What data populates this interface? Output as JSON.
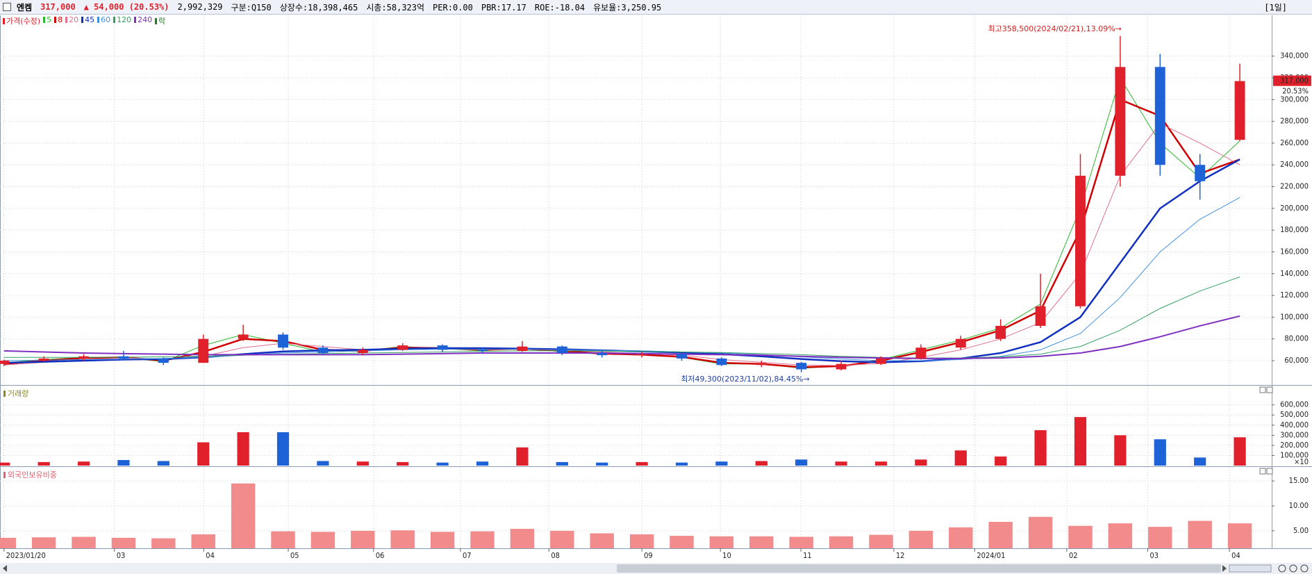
{
  "header": {
    "name": "엔켐",
    "price": "317,000",
    "change": "▲ 54,000 (20.53%)",
    "volume": "2,992,329",
    "fields": [
      "구분:Q150",
      "상장수:18,398,465",
      "시총:58,323억",
      "PER:0.00",
      "PBR:17.17",
      "ROE:-18.04",
      "유보율:3,250.95"
    ],
    "period": "[1일]"
  },
  "chart_data": [
    {
      "type": "candlestick",
      "legend_title": "가격(수정)",
      "up_color": "#e0202a",
      "down_color": "#1d62d6",
      "xlim": [
        -0.1,
        31.8
      ],
      "ylim": [
        37640,
        377500
      ],
      "yticks": [
        {
          "value": 60000,
          "label": "60,000"
        },
        {
          "value": 80000,
          "label": "80,000"
        },
        {
          "value": 100000,
          "label": "100,000"
        },
        {
          "value": 120000,
          "label": "120,000"
        },
        {
          "value": 140000,
          "label": "140,000"
        },
        {
          "value": 160000,
          "label": "160,000"
        },
        {
          "value": 180000,
          "label": "180,000"
        },
        {
          "value": 200000,
          "label": "200,000"
        },
        {
          "value": 220000,
          "label": "220,000"
        },
        {
          "value": 240000,
          "label": "240,000"
        },
        {
          "value": 260000,
          "label": "260,000"
        },
        {
          "value": 280000,
          "label": "280,000"
        },
        {
          "value": 300000,
          "label": "300,000"
        },
        {
          "value": 320000,
          "label": "320,000"
        },
        {
          "value": 340000,
          "label": "340,000"
        }
      ],
      "open": [
        57000,
        60000,
        62000,
        64000,
        62000,
        58000,
        80000,
        84000,
        72000,
        67000,
        70000,
        74000,
        70000,
        69000,
        73000,
        67000,
        65000,
        66000,
        62000,
        56000,
        58000,
        52000,
        57000,
        62000,
        72000,
        80000,
        92000,
        110000,
        230000,
        330000,
        240000,
        263000
      ],
      "high": [
        61000,
        64000,
        66000,
        69000,
        63000,
        84000,
        93000,
        86000,
        74000,
        72000,
        76000,
        75000,
        72000,
        78000,
        74000,
        69000,
        68000,
        67000,
        63000,
        60000,
        59000,
        60000,
        64000,
        75000,
        83000,
        98000,
        140000,
        250000,
        358500,
        342000,
        250000,
        333000
      ],
      "low": [
        55000,
        59000,
        60000,
        61000,
        56000,
        58000,
        78000,
        70000,
        66000,
        65000,
        69000,
        68000,
        67000,
        68000,
        65000,
        63000,
        63000,
        60000,
        55000,
        54000,
        49300,
        51000,
        56000,
        61000,
        70000,
        78000,
        90000,
        108000,
        220000,
        230000,
        208000,
        262000
      ],
      "close": [
        60000,
        62000,
        64000,
        62000,
        58000,
        80000,
        84000,
        72000,
        67000,
        70000,
        74000,
        70000,
        69000,
        73000,
        67000,
        65000,
        66000,
        62000,
        56000,
        58000,
        52000,
        57000,
        62000,
        72000,
        80000,
        92000,
        110000,
        230000,
        330000,
        240000,
        225000,
        317000
      ],
      "moving_averages": [
        {
          "name": "5",
          "color": "#2eb82e",
          "width": 1,
          "values": [
            58000,
            61000,
            63000,
            63000,
            59000,
            74000,
            84000,
            76000,
            68000,
            69000,
            73000,
            71000,
            69000,
            72000,
            68000,
            66000,
            66000,
            63000,
            57000,
            57000,
            53000,
            55000,
            61000,
            70000,
            79000,
            90000,
            112000,
            200000,
            320000,
            260000,
            228000,
            262000
          ]
        },
        {
          "name": "8",
          "color": "#d00000",
          "width": 2.5,
          "values": [
            57000,
            60000,
            62500,
            63000,
            60000,
            68000,
            80000,
            78000,
            70000,
            69000,
            72000,
            71500,
            70000,
            71000,
            69000,
            66500,
            65500,
            63500,
            58000,
            57000,
            54000,
            55000,
            60000,
            68000,
            77000,
            88000,
            106000,
            180000,
            300000,
            285000,
            232000,
            245000
          ]
        },
        {
          "name": "20",
          "color": "#e07090",
          "width": 1,
          "values": [
            56000,
            58500,
            61000,
            62500,
            61500,
            64000,
            72000,
            76000,
            73000,
            70000,
            71000,
            71500,
            70500,
            70500,
            70000,
            68000,
            66500,
            65000,
            61000,
            58500,
            56000,
            55500,
            57500,
            63000,
            70000,
            80000,
            95000,
            140000,
            230000,
            278000,
            260000,
            240000
          ]
        },
        {
          "name": "45",
          "color": "#1030c0",
          "width": 2.5,
          "values": [
            58000,
            59000,
            60000,
            61000,
            61500,
            63000,
            66000,
            68500,
            69500,
            70000,
            71000,
            71500,
            71500,
            71000,
            70500,
            69500,
            68500,
            67500,
            66000,
            64000,
            61500,
            59500,
            58500,
            59500,
            62000,
            67000,
            77000,
            100000,
            150000,
            200000,
            225000,
            245000
          ]
        },
        {
          "name": "60",
          "color": "#4090e0",
          "width": 1,
          "values": [
            60000,
            60500,
            61000,
            61500,
            62000,
            63000,
            65000,
            67000,
            68000,
            69000,
            70000,
            70500,
            70500,
            70500,
            70000,
            69500,
            69000,
            68000,
            67000,
            65500,
            63500,
            61500,
            60000,
            60000,
            61000,
            64000,
            70000,
            85000,
            118000,
            160000,
            190000,
            210000
          ]
        },
        {
          "name": "120",
          "color": "#30a060",
          "width": 1,
          "values": [
            63000,
            63000,
            63000,
            63200,
            63500,
            64000,
            65000,
            66000,
            66500,
            67000,
            67500,
            68000,
            68500,
            69000,
            69000,
            68800,
            68500,
            68000,
            67500,
            66500,
            65500,
            64000,
            63000,
            62500,
            62500,
            63500,
            66000,
            73000,
            88000,
            108000,
            124000,
            137000
          ]
        },
        {
          "name": "240",
          "color": "#8030c0",
          "width": 2,
          "values": [
            69000,
            68000,
            67000,
            66500,
            66000,
            65500,
            65500,
            65500,
            65500,
            65500,
            66000,
            66500,
            67000,
            67000,
            67000,
            67000,
            66500,
            66000,
            65500,
            65000,
            64000,
            63000,
            62500,
            62000,
            62000,
            62500,
            64000,
            67000,
            73000,
            82000,
            92000,
            101000
          ]
        }
      ],
      "legend_extra": {
        "name": "락",
        "color": "#208020"
      },
      "high_annotation": "최고358,500(2024/02/21),13.09%→",
      "low_annotation": "최저49,300(2023/11/02),84.45%→",
      "price_label": "317,000",
      "change_label": "20.53%",
      "grid": true
    },
    {
      "type": "bar",
      "title": "거래량",
      "title_color": "#8a8a20",
      "color_by_candle": true,
      "xlim": [
        -0.1,
        31.8
      ],
      "ylim": [
        0,
        790000
      ],
      "yticks": [
        {
          "value": 100000,
          "label": "100,000"
        },
        {
          "value": 200000,
          "label": "200,000"
        },
        {
          "value": 300000,
          "label": "300,000"
        },
        {
          "value": 400000,
          "label": "400,000"
        },
        {
          "value": 500000,
          "label": "500,000"
        },
        {
          "value": 600000,
          "label": "600,000"
        }
      ],
      "unit_label": "×10",
      "values": [
        30000,
        35000,
        40000,
        55000,
        45000,
        230000,
        330000,
        330000,
        45000,
        40000,
        35000,
        30000,
        40000,
        180000,
        35000,
        30000,
        35000,
        30000,
        40000,
        45000,
        60000,
        40000,
        40000,
        60000,
        150000,
        90000,
        350000,
        480000,
        300000,
        260000,
        80000,
        280000
      ],
      "grid": true
    },
    {
      "type": "bar",
      "title": "외국인보유비중",
      "title_color": "#e06070",
      "color": "#f28b8b",
      "xlim": [
        -0.1,
        31.8
      ],
      "ylim": [
        1.5,
        17.8
      ],
      "yticks": [
        {
          "value": 5,
          "label": "5.00"
        },
        {
          "value": 10,
          "label": "10.00"
        },
        {
          "value": 15,
          "label": "15.00"
        }
      ],
      "xticks": [
        {
          "value": 0,
          "label": "2023/01/20"
        },
        {
          "value": 2.77,
          "label": "03"
        },
        {
          "value": 5.01,
          "label": "04"
        },
        {
          "value": 7.13,
          "label": "05"
        },
        {
          "value": 9.27,
          "label": "06"
        },
        {
          "value": 11.45,
          "label": "07"
        },
        {
          "value": 13.67,
          "label": "08"
        },
        {
          "value": 16.0,
          "label": "09"
        },
        {
          "value": 17.97,
          "label": "10"
        },
        {
          "value": 19.99,
          "label": "11"
        },
        {
          "value": 22.32,
          "label": "12"
        },
        {
          "value": 24.35,
          "label": "2024/01"
        },
        {
          "value": 26.66,
          "label": "02"
        },
        {
          "value": 28.69,
          "label": "03"
        },
        {
          "value": 30.74,
          "label": "04"
        }
      ],
      "values": [
        3.6,
        3.7,
        3.8,
        3.6,
        3.5,
        4.3,
        14.5,
        4.9,
        4.8,
        5.0,
        5.1,
        4.8,
        4.9,
        5.4,
        5.0,
        4.5,
        4.3,
        4.0,
        3.9,
        3.9,
        3.8,
        3.9,
        4.2,
        5.0,
        5.7,
        6.8,
        7.8,
        6.0,
        6.5,
        5.8,
        7.0,
        6.5
      ],
      "grid": true
    }
  ]
}
